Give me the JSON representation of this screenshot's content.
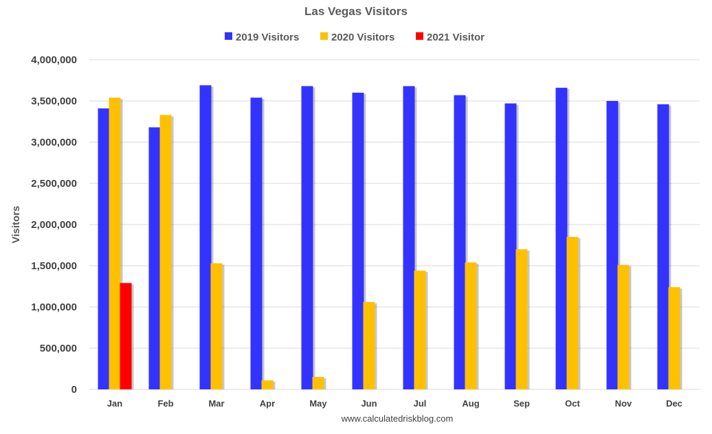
{
  "chart_data": {
    "type": "bar",
    "title": "Las Vegas Visitors",
    "xlabel": "",
    "ylabel": "Visitors",
    "source": "www.calculatedriskblog.com",
    "ylim": [
      0,
      4000000
    ],
    "yticks": [
      0,
      500000,
      1000000,
      1500000,
      2000000,
      2500000,
      3000000,
      3500000,
      4000000
    ],
    "ytick_labels": [
      "0",
      "500,000",
      "1,000,000",
      "1,500,000",
      "2,000,000",
      "2,500,000",
      "3,000,000",
      "3,500,000",
      "4,000,000"
    ],
    "legend_position": "top-center",
    "grid": true,
    "categories": [
      "Jan",
      "Feb",
      "Mar",
      "Apr",
      "May",
      "Jun",
      "Jul",
      "Aug",
      "Sep",
      "Oct",
      "Nov",
      "Dec"
    ],
    "series": [
      {
        "name": "2019 Visitors",
        "color": "#3333ff",
        "values": [
          3410000,
          3180000,
          3690000,
          3540000,
          3680000,
          3600000,
          3680000,
          3570000,
          3470000,
          3660000,
          3500000,
          3460000
        ]
      },
      {
        "name": "2020 Visitors",
        "color": "#ffc000",
        "values": [
          3540000,
          3330000,
          1530000,
          110000,
          150000,
          1060000,
          1440000,
          1540000,
          1700000,
          1850000,
          1510000,
          1240000
        ]
      },
      {
        "name": "2021 Visitor",
        "color": "#ff0000",
        "values": [
          1290000,
          null,
          null,
          null,
          null,
          null,
          null,
          null,
          null,
          null,
          null,
          null
        ]
      }
    ]
  }
}
